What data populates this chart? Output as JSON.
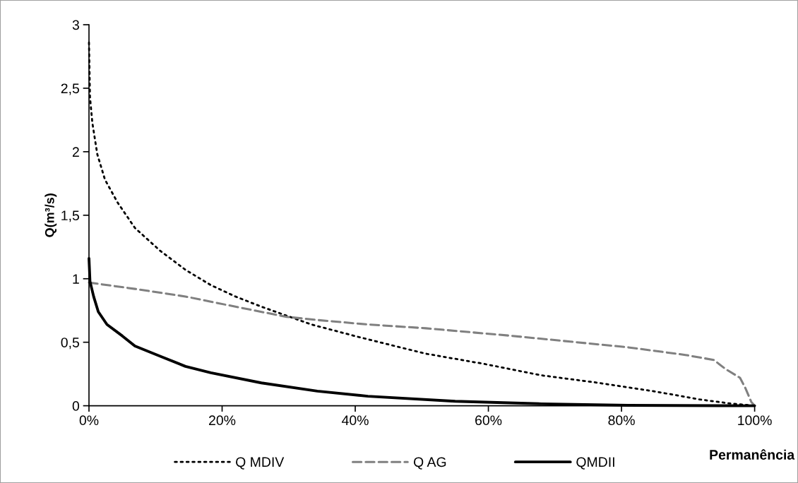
{
  "chart_data": {
    "type": "line",
    "xlabel": "Permanência",
    "ylabel": "Q(m³/s)",
    "xlim": [
      0,
      100
    ],
    "ylim": [
      0,
      3
    ],
    "xticks": [
      {
        "value": 0,
        "label": "0%"
      },
      {
        "value": 20,
        "label": "20%"
      },
      {
        "value": 40,
        "label": "40%"
      },
      {
        "value": 60,
        "label": "60%"
      },
      {
        "value": 80,
        "label": "80%"
      },
      {
        "value": 100,
        "label": "100%"
      }
    ],
    "yticks": [
      0,
      {
        "value": 0.5,
        "label": "0,5"
      },
      1,
      {
        "value": 1.5,
        "label": "1,5"
      },
      2,
      {
        "value": 2.5,
        "label": "2,5"
      },
      3
    ],
    "grid": false,
    "legend": "bottom",
    "marker": "none",
    "series": [
      {
        "name": "Q MDIV",
        "color": "#000000",
        "line_style": "dotted",
        "x": [
          0,
          0.15,
          0.5,
          1.25,
          2.4,
          4.3,
          6.9,
          10.7,
          14.5,
          18.3,
          22,
          25.9,
          33.4,
          40.6,
          50.6,
          59.3,
          67.9,
          76.6,
          85.3,
          91.7,
          96,
          100
        ],
        "values": [
          2.86,
          2.43,
          2.23,
          1.98,
          1.78,
          1.6,
          1.4,
          1.22,
          1.07,
          0.95,
          0.86,
          0.78,
          0.64,
          0.54,
          0.41,
          0.33,
          0.24,
          0.18,
          0.11,
          0.05,
          0.02,
          0
        ]
      },
      {
        "name": "Q AG",
        "color": "#808080",
        "line_style": "dashed",
        "x": [
          0,
          6.9,
          14.5,
          22,
          29.7,
          34.3,
          41.9,
          50.6,
          63.6,
          72.3,
          81,
          89.6,
          93.9,
          95.6,
          97.8,
          98.6,
          99.5,
          100
        ],
        "values": [
          0.97,
          0.92,
          0.86,
          0.78,
          0.7,
          0.675,
          0.64,
          0.61,
          0.55,
          0.505,
          0.46,
          0.4,
          0.36,
          0.29,
          0.22,
          0.14,
          0.03,
          0
        ]
      },
      {
        "name": "QMDII",
        "color": "#000000",
        "line_style": "solid",
        "x": [
          0,
          0.15,
          0.7,
          1.4,
          2.7,
          5,
          6.9,
          10.7,
          14.5,
          18.3,
          25.9,
          34.3,
          41.9,
          55,
          68,
          81,
          100
        ],
        "values": [
          1.16,
          0.98,
          0.86,
          0.74,
          0.64,
          0.55,
          0.47,
          0.39,
          0.31,
          0.26,
          0.18,
          0.115,
          0.075,
          0.035,
          0.015,
          0.003,
          0
        ]
      }
    ]
  }
}
